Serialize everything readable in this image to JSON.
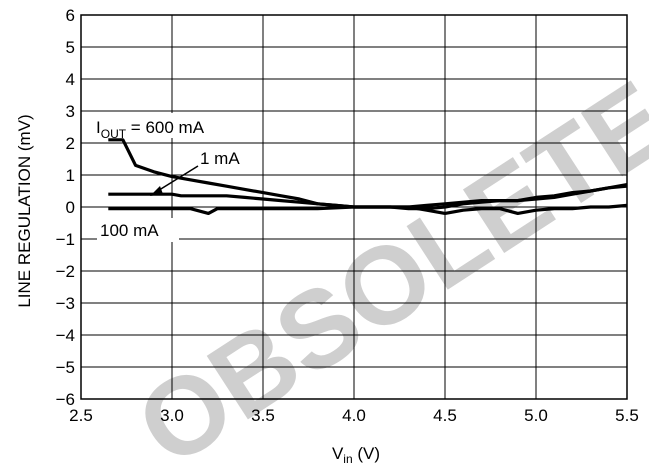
{
  "chart_data": {
    "type": "line",
    "xlabel_main": "V",
    "xlabel_sub": "in",
    "xlabel_unit": " (V)",
    "ylabel": "LINE REGULATION (mV)",
    "xlim": [
      2.5,
      5.5
    ],
    "ylim": [
      -6,
      6
    ],
    "x_ticks": [
      2.5,
      3.0,
      3.5,
      4.0,
      4.5,
      5.0,
      5.5
    ],
    "x_tick_labels": [
      "2.5",
      "3.0",
      "3.5",
      "4.0",
      "4.5",
      "5.0",
      "5.5"
    ],
    "y_ticks": [
      6,
      5,
      4,
      3,
      2,
      1,
      0,
      -1,
      -2,
      -3,
      -4,
      -5,
      -6
    ],
    "y_tick_labels": [
      "6",
      "5",
      "4",
      "3",
      "2",
      "1",
      "0",
      "−1",
      "−2",
      "−3",
      "−4",
      "−5",
      "−6"
    ],
    "grid": true,
    "series": [
      {
        "label": "600 mA",
        "x": [
          2.65,
          2.73,
          2.8,
          2.9,
          3.0,
          3.1,
          3.2,
          3.3,
          3.4,
          3.5,
          3.6,
          3.7,
          3.8,
          3.9,
          4.0,
          4.1,
          4.2,
          4.3,
          4.4,
          4.5,
          4.6,
          4.7,
          4.8,
          4.9,
          5.0,
          5.1,
          5.2,
          5.3,
          5.4,
          5.5
        ],
        "y": [
          2.1,
          2.1,
          1.3,
          1.1,
          0.95,
          0.85,
          0.75,
          0.65,
          0.55,
          0.45,
          0.35,
          0.25,
          0.1,
          0.05,
          0.0,
          0.0,
          0.0,
          -0.05,
          -0.05,
          0.0,
          0.1,
          0.15,
          0.2,
          0.2,
          0.25,
          0.3,
          0.4,
          0.5,
          0.6,
          0.7
        ]
      },
      {
        "label": "1 mA",
        "x": [
          2.65,
          2.8,
          3.0,
          3.05,
          3.2,
          3.3,
          3.4,
          3.5,
          3.6,
          3.7,
          3.8,
          3.9,
          4.0,
          4.1,
          4.2,
          4.3,
          4.4,
          4.5,
          4.6,
          4.7,
          4.8,
          4.9,
          5.0,
          5.1,
          5.2,
          5.3,
          5.4,
          5.5
        ],
        "y": [
          0.4,
          0.4,
          0.4,
          0.35,
          0.35,
          0.35,
          0.3,
          0.25,
          0.2,
          0.15,
          0.1,
          0.05,
          0.0,
          0.0,
          0.0,
          0.0,
          0.05,
          0.1,
          0.15,
          0.2,
          0.2,
          0.2,
          0.3,
          0.35,
          0.45,
          0.5,
          0.6,
          0.65
        ]
      },
      {
        "label": "100 mA",
        "x": [
          2.65,
          2.8,
          3.0,
          3.1,
          3.2,
          3.25,
          3.4,
          3.6,
          3.8,
          4.0,
          4.2,
          4.3,
          4.4,
          4.5,
          4.6,
          4.7,
          4.8,
          4.9,
          5.0,
          5.1,
          5.2,
          5.3,
          5.4,
          5.5
        ],
        "y": [
          -0.05,
          -0.05,
          -0.05,
          -0.05,
          -0.2,
          -0.05,
          -0.05,
          -0.05,
          -0.05,
          0.0,
          0.0,
          0.0,
          -0.1,
          -0.2,
          -0.1,
          -0.05,
          -0.05,
          -0.2,
          -0.1,
          -0.05,
          -0.05,
          0.0,
          0.0,
          0.05
        ]
      }
    ],
    "annotations": {
      "iout_prefix": "I",
      "iout_sub": "OUT",
      "iout_rest": " = 600 mA",
      "label_1ma": "1 mA",
      "label_100ma": "100 mA"
    },
    "watermark": "OBSOLETE DEVICE"
  }
}
